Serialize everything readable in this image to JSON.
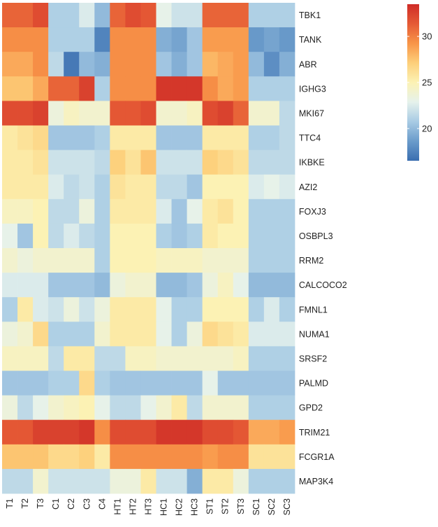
{
  "chart_data": {
    "type": "heatmap",
    "rows": [
      "TBK1",
      "TANK",
      "ABR",
      "IGHG3",
      "MKI67",
      "TTC4",
      "IKBKE",
      "AZI2",
      "FOXJ3",
      "OSBPL3",
      "RRM2",
      "CALCOCO2",
      "FMNL1",
      "NUMA1",
      "SRSF2",
      "PALMD",
      "GPD2",
      "TRIM21",
      "FCGR1A",
      "MAP3K4"
    ],
    "columns": [
      "T1",
      "T2",
      "T3",
      "C1",
      "C2",
      "C3",
      "C4",
      "HT1",
      "HT2",
      "HT3",
      "HC1",
      "HC2",
      "HC3",
      "ST1",
      "ST2",
      "ST3",
      "SC1",
      "SC2",
      "SC3"
    ],
    "values": [
      [
        31.0,
        31.0,
        32.0,
        21.0,
        21.0,
        22.5,
        20.0,
        31.0,
        32.0,
        31.5,
        23.0,
        22.0,
        22.0,
        31.0,
        31.0,
        31.0,
        21.0,
        21.0,
        21.0
      ],
      [
        29.5,
        29.5,
        29.5,
        21.0,
        21.0,
        21.0,
        17.5,
        29.5,
        29.5,
        29.5,
        19.5,
        19.0,
        20.5,
        29.0,
        29.0,
        29.0,
        18.5,
        19.0,
        18.5
      ],
      [
        28.5,
        28.5,
        29.5,
        21.5,
        17.0,
        20.0,
        19.5,
        29.5,
        29.5,
        29.5,
        20.5,
        19.5,
        20.5,
        28.0,
        28.5,
        29.0,
        20.0,
        18.0,
        19.5
      ],
      [
        27.5,
        27.5,
        28.5,
        31.0,
        31.0,
        32.5,
        21.0,
        29.5,
        29.5,
        29.5,
        33.0,
        33.0,
        33.0,
        29.5,
        28.5,
        29.0,
        21.0,
        21.0,
        21.0
      ],
      [
        32.0,
        32.0,
        32.5,
        23.5,
        24.5,
        24.0,
        24.0,
        31.5,
        31.5,
        32.0,
        24.0,
        24.0,
        24.5,
        32.0,
        32.5,
        31.0,
        24.0,
        24.0,
        21.5
      ],
      [
        25.5,
        26.0,
        26.5,
        20.5,
        20.5,
        20.5,
        21.0,
        25.5,
        25.5,
        25.5,
        20.5,
        20.5,
        20.5,
        25.5,
        25.5,
        25.5,
        21.0,
        21.0,
        21.5
      ],
      [
        25.5,
        25.5,
        26.0,
        22.0,
        22.0,
        22.0,
        21.5,
        27.0,
        26.0,
        27.5,
        22.0,
        22.0,
        22.0,
        27.0,
        26.5,
        26.0,
        21.5,
        21.5,
        21.5
      ],
      [
        25.5,
        25.5,
        25.5,
        22.5,
        21.5,
        22.0,
        21.0,
        26.0,
        25.5,
        25.5,
        21.5,
        21.5,
        20.5,
        25.0,
        25.0,
        25.0,
        22.5,
        23.0,
        22.5
      ],
      [
        24.5,
        24.5,
        25.0,
        21.5,
        21.5,
        23.5,
        21.0,
        25.5,
        25.5,
        25.5,
        22.5,
        20.5,
        23.0,
        25.5,
        26.0,
        25.0,
        21.0,
        21.0,
        21.0
      ],
      [
        23.0,
        20.5,
        25.0,
        21.5,
        22.5,
        21.5,
        21.0,
        25.0,
        25.0,
        25.0,
        21.0,
        20.5,
        21.0,
        25.5,
        25.0,
        25.0,
        21.0,
        21.0,
        21.0
      ],
      [
        24.0,
        23.5,
        24.0,
        24.0,
        24.0,
        24.0,
        21.0,
        25.0,
        25.0,
        25.0,
        24.5,
        24.5,
        24.5,
        24.0,
        24.0,
        24.0,
        21.0,
        21.0,
        21.0
      ],
      [
        22.5,
        22.5,
        22.5,
        20.5,
        20.5,
        20.5,
        20.0,
        23.5,
        24.0,
        24.0,
        20.0,
        20.0,
        20.5,
        23.5,
        24.5,
        23.0,
        20.0,
        20.0,
        20.0
      ],
      [
        21.0,
        25.5,
        22.5,
        22.0,
        23.5,
        22.0,
        23.5,
        25.5,
        25.5,
        25.5,
        23.0,
        21.0,
        21.0,
        25.0,
        25.0,
        25.0,
        21.0,
        22.5,
        21.0
      ],
      [
        23.5,
        24.0,
        26.5,
        21.0,
        21.0,
        21.0,
        24.0,
        25.5,
        25.5,
        25.5,
        23.0,
        21.0,
        23.5,
        26.5,
        26.0,
        25.5,
        22.5,
        22.5,
        22.5
      ],
      [
        24.5,
        24.5,
        24.5,
        21.5,
        25.5,
        25.5,
        21.5,
        21.5,
        24.5,
        24.5,
        24.0,
        24.0,
        24.0,
        24.0,
        24.0,
        24.5,
        21.0,
        21.0,
        21.0
      ],
      [
        20.5,
        20.5,
        20.5,
        21.0,
        21.0,
        26.5,
        21.0,
        20.5,
        20.5,
        20.5,
        20.5,
        20.5,
        20.5,
        23.0,
        20.5,
        20.5,
        20.5,
        20.5,
        20.5
      ],
      [
        23.5,
        21.5,
        23.0,
        24.0,
        24.5,
        25.0,
        23.0,
        21.5,
        21.5,
        23.0,
        24.0,
        25.5,
        21.5,
        24.0,
        24.0,
        24.0,
        21.0,
        21.0,
        21.0
      ],
      [
        31.5,
        31.5,
        32.5,
        32.5,
        32.5,
        33.0,
        29.5,
        32.0,
        32.0,
        32.0,
        33.0,
        33.0,
        33.0,
        32.0,
        32.0,
        31.5,
        28.5,
        28.5,
        29.0
      ],
      [
        27.5,
        27.5,
        27.5,
        26.5,
        26.5,
        27.0,
        25.5,
        29.5,
        29.5,
        29.5,
        29.5,
        29.5,
        29.5,
        29.0,
        29.5,
        29.5,
        26.0,
        26.0,
        26.0
      ],
      [
        21.5,
        21.5,
        24.0,
        22.0,
        22.0,
        22.0,
        22.0,
        23.5,
        23.5,
        25.5,
        22.0,
        22.0,
        19.5,
        25.5,
        25.5,
        23.5,
        21.0,
        21.0,
        21.0
      ]
    ],
    "colorbar": {
      "min": 16.5,
      "max": 33.5,
      "ticks": [
        20,
        25,
        30
      ]
    },
    "colormap": [
      "#3a6eb0",
      "#6b9ccb",
      "#a8cbe4",
      "#e6f2ec",
      "#fcf2b4",
      "#fdcf7a",
      "#f89548",
      "#e55a35",
      "#cf2c27"
    ],
    "legend_position": "right"
  }
}
